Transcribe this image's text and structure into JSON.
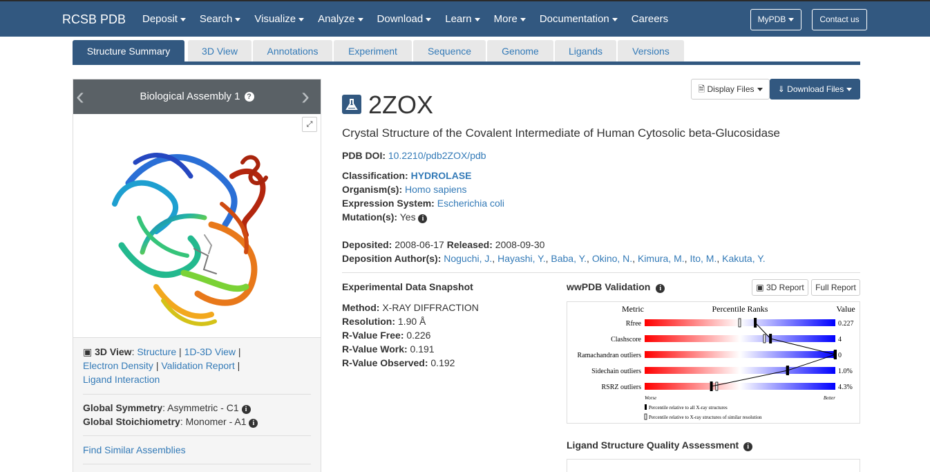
{
  "navbar": {
    "brand": "RCSB PDB",
    "menu": [
      "Deposit",
      "Search",
      "Visualize",
      "Analyze",
      "Download",
      "Learn",
      "More",
      "Documentation"
    ],
    "careers": "Careers",
    "mypdb": "MyPDB",
    "contact": "Contact us"
  },
  "tabs": [
    "Structure Summary",
    "3D View",
    "Annotations",
    "Experiment",
    "Sequence",
    "Genome",
    "Ligands",
    "Versions"
  ],
  "viewer": {
    "title": "Biological Assembly 1",
    "help": "?"
  },
  "left_links": {
    "label_3d": "3D View",
    "structure": "Structure",
    "view_1d3d": "1D-3D View",
    "electron_density": "Electron Density",
    "validation_report": "Validation Report",
    "ligand_interaction": "Ligand Interaction",
    "sep": "|",
    "colon": ":",
    "global_symmetry_label": "Global Symmetry",
    "global_symmetry_value": ": Asymmetric - C1",
    "global_stoich_label": "Global Stoichiometry",
    "global_stoich_value": ": Monomer - A1",
    "find_similar": "Find Similar Assemblies"
  },
  "entry": {
    "id": "2ZOX",
    "title": "Crystal Structure of the Covalent Intermediate of Human Cytosolic beta-Glucosidase",
    "doi_label": "PDB DOI:",
    "doi": "10.2210/pdb2ZOX/pdb",
    "classification_label": "Classification:",
    "classification": "HYDROLASE",
    "organism_label": "Organism(s):",
    "organism": "Homo sapiens",
    "expression_label": "Expression System:",
    "expression": "Escherichia coli",
    "mutation_label": "Mutation(s):",
    "mutation": "Yes",
    "deposited_label": "Deposited:",
    "deposited": "2008-06-17",
    "released_label": "Released:",
    "released": "2008-09-30",
    "authors_label": "Deposition Author(s):",
    "authors": [
      "Noguchi, J.",
      "Hayashi, Y.",
      "Baba, Y.",
      "Okino, N.",
      "Kimura, M.",
      "Ito, M.",
      "Kakuta, Y."
    ]
  },
  "files": {
    "display": "Display Files",
    "download": "Download Files"
  },
  "experimental": {
    "heading": "Experimental Data Snapshot",
    "method_label": "Method:",
    "method": "X-RAY DIFFRACTION",
    "resolution_label": "Resolution:",
    "resolution": "1.90 Å",
    "rfree_label": "R-Value Free:",
    "rfree": "0.226",
    "rwork_label": "R-Value Work:",
    "rwork": "0.191",
    "robs_label": "R-Value Observed:",
    "robs": "0.192"
  },
  "validation": {
    "heading": "wwPDB Validation",
    "btn_3d": "3D Report",
    "btn_full": "Full Report",
    "col_metric": "Metric",
    "col_ranks": "Percentile Ranks",
    "col_value": "Value",
    "worse": "Worse",
    "better": "Better",
    "legend_all": "Percentile relative to all X-ray structures",
    "legend_similar": "Percentile relative to X-ray structures of similar resolution",
    "metrics": [
      {
        "name": "Rfree",
        "value": "0.227",
        "pct_all": 0.58,
        "pct_sim": 0.5
      },
      {
        "name": "Clashscore",
        "value": "4",
        "pct_all": 0.66,
        "pct_sim": 0.63
      },
      {
        "name": "Ramachandran outliers",
        "value": "0",
        "pct_all": 1.0,
        "pct_sim": 1.0
      },
      {
        "name": "Sidechain outliers",
        "value": "1.0%",
        "pct_all": 0.75,
        "pct_sim": 0.75
      },
      {
        "name": "RSRZ outliers",
        "value": "4.3%",
        "pct_all": 0.35,
        "pct_sim": 0.38
      }
    ],
    "colors": {
      "bad": "#ff0000",
      "good": "#0000ff"
    }
  },
  "ligand_quality": {
    "heading": "Ligand Structure Quality Assessment"
  }
}
